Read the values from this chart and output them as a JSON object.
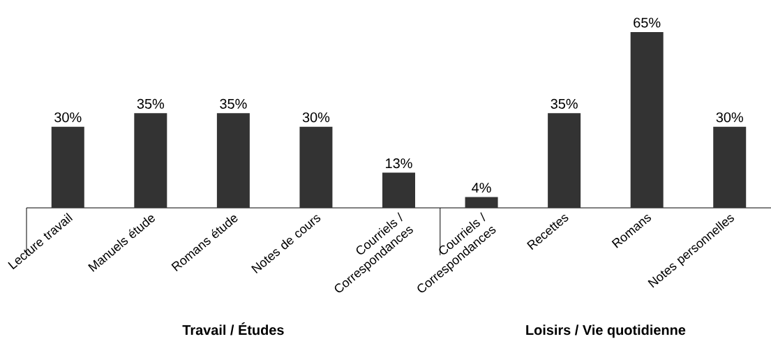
{
  "chart_data": [
    {
      "type": "bar",
      "xlabel": "Travail / Études",
      "categories": [
        "Lecture travail",
        "Manuels étude",
        "Romans étude",
        "Notes de cours",
        "Courriels / Correspondances"
      ],
      "values": [
        30,
        35,
        35,
        30,
        13
      ],
      "value_labels": [
        "30%",
        "35%",
        "35%",
        "30%",
        "13%"
      ],
      "color": "#333333"
    },
    {
      "type": "bar",
      "xlabel": "Loisirs / Vie quotidienne",
      "categories": [
        "Courriels / Correspondances",
        "Recettes",
        "Romans",
        "Notes personnelles"
      ],
      "values": [
        4,
        35,
        65,
        30
      ],
      "value_labels": [
        "4%",
        "35%",
        "65%",
        "30%"
      ],
      "color": "#333333"
    }
  ]
}
